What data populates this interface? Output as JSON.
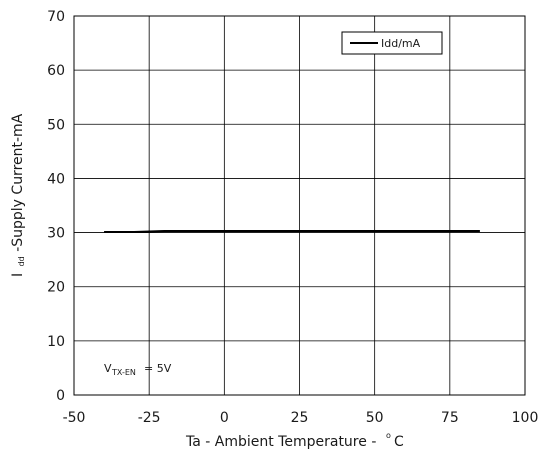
{
  "chart_data": {
    "type": "line",
    "title": "",
    "xlabel": "Ta - Ambient Temperature -",
    "xlabel_unit": "C",
    "xlabel_sup": "o",
    "ylabel_prefix": "I",
    "ylabel_sub": "dd",
    "ylabel_rest": " -Supply Current-mA",
    "xlim": [
      -50,
      100
    ],
    "ylim": [
      0,
      70
    ],
    "xticks": [
      -50,
      -25,
      0,
      25,
      50,
      75,
      100
    ],
    "yticks": [
      0,
      10,
      20,
      30,
      40,
      50,
      60,
      70
    ],
    "grid": true,
    "legend_position": "top-right",
    "series": [
      {
        "name": "Idd/mA",
        "color": "#000000",
        "x": [
          -40,
          -30,
          -20,
          0,
          25,
          50,
          85
        ],
        "y": [
          30.1,
          30.1,
          30.3,
          30.3,
          30.3,
          30.3,
          30.3
        ]
      }
    ],
    "annotation": {
      "label_main": "V",
      "label_sub": "TX-EN",
      "label_value": "= 5V"
    }
  }
}
